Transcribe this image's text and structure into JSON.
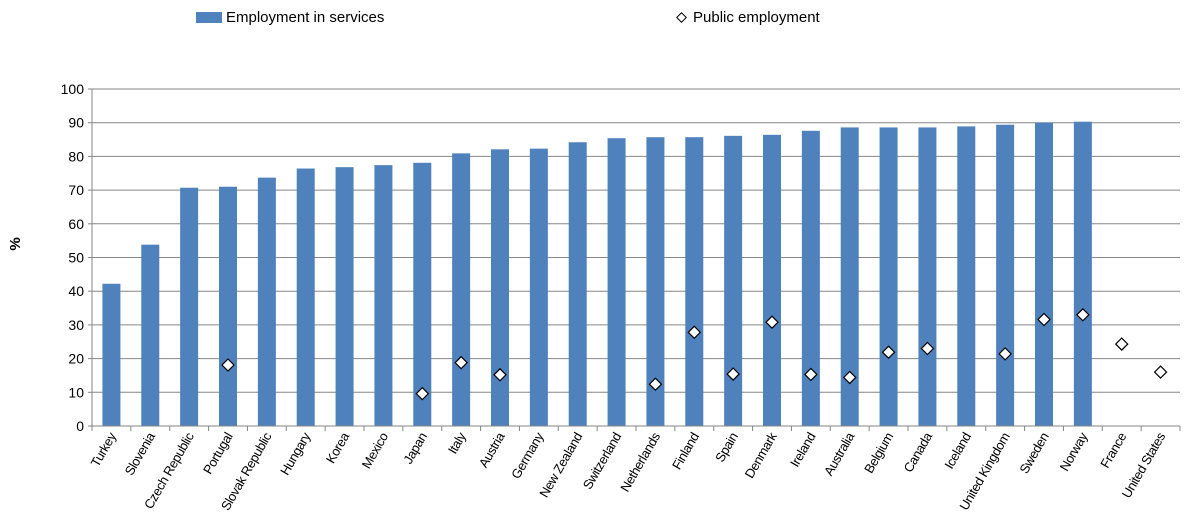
{
  "chart_data": {
    "type": "bar",
    "title": "",
    "xlabel": "",
    "ylabel": "%",
    "ylim": [
      0,
      100
    ],
    "yticks": [
      0,
      10,
      20,
      30,
      40,
      50,
      60,
      70,
      80,
      90,
      100
    ],
    "grid": true,
    "legend_position": "top",
    "categories": [
      "Turkey",
      "Slovenia",
      "Czech Republic",
      "Portugal",
      "Slovak Republic",
      "Hungary",
      "Korea",
      "Mexico",
      "Japan",
      "Italy",
      "Austria",
      "Germany",
      "New Zealand",
      "Switzerland",
      "Netherlands",
      "Finland",
      "Spain",
      "Denmark",
      "Ireland",
      "Australia",
      "Belgium",
      "Canada",
      "Iceland",
      "United Kingdom",
      "Sweden",
      "Norway",
      "France",
      "United States"
    ],
    "series": [
      {
        "name": "Employment in services",
        "kind": "bar",
        "color": "#4f81bd",
        "values": [
          42.2,
          53.8,
          70.7,
          71.0,
          73.7,
          76.4,
          76.8,
          77.4,
          78.1,
          80.9,
          82.1,
          82.3,
          84.2,
          85.4,
          85.7,
          85.7,
          86.1,
          86.4,
          87.6,
          88.6,
          88.6,
          88.6,
          88.9,
          89.4,
          90.0,
          90.3,
          null,
          null
        ]
      },
      {
        "name": "Public employment",
        "kind": "marker",
        "marker": "diamond",
        "values": [
          null,
          null,
          null,
          18.1,
          null,
          null,
          null,
          null,
          9.6,
          18.8,
          15.2,
          null,
          null,
          null,
          12.4,
          27.8,
          15.4,
          30.8,
          15.3,
          14.4,
          21.9,
          23.0,
          null,
          21.4,
          31.6,
          33.0,
          24.3,
          16.0
        ]
      }
    ]
  }
}
